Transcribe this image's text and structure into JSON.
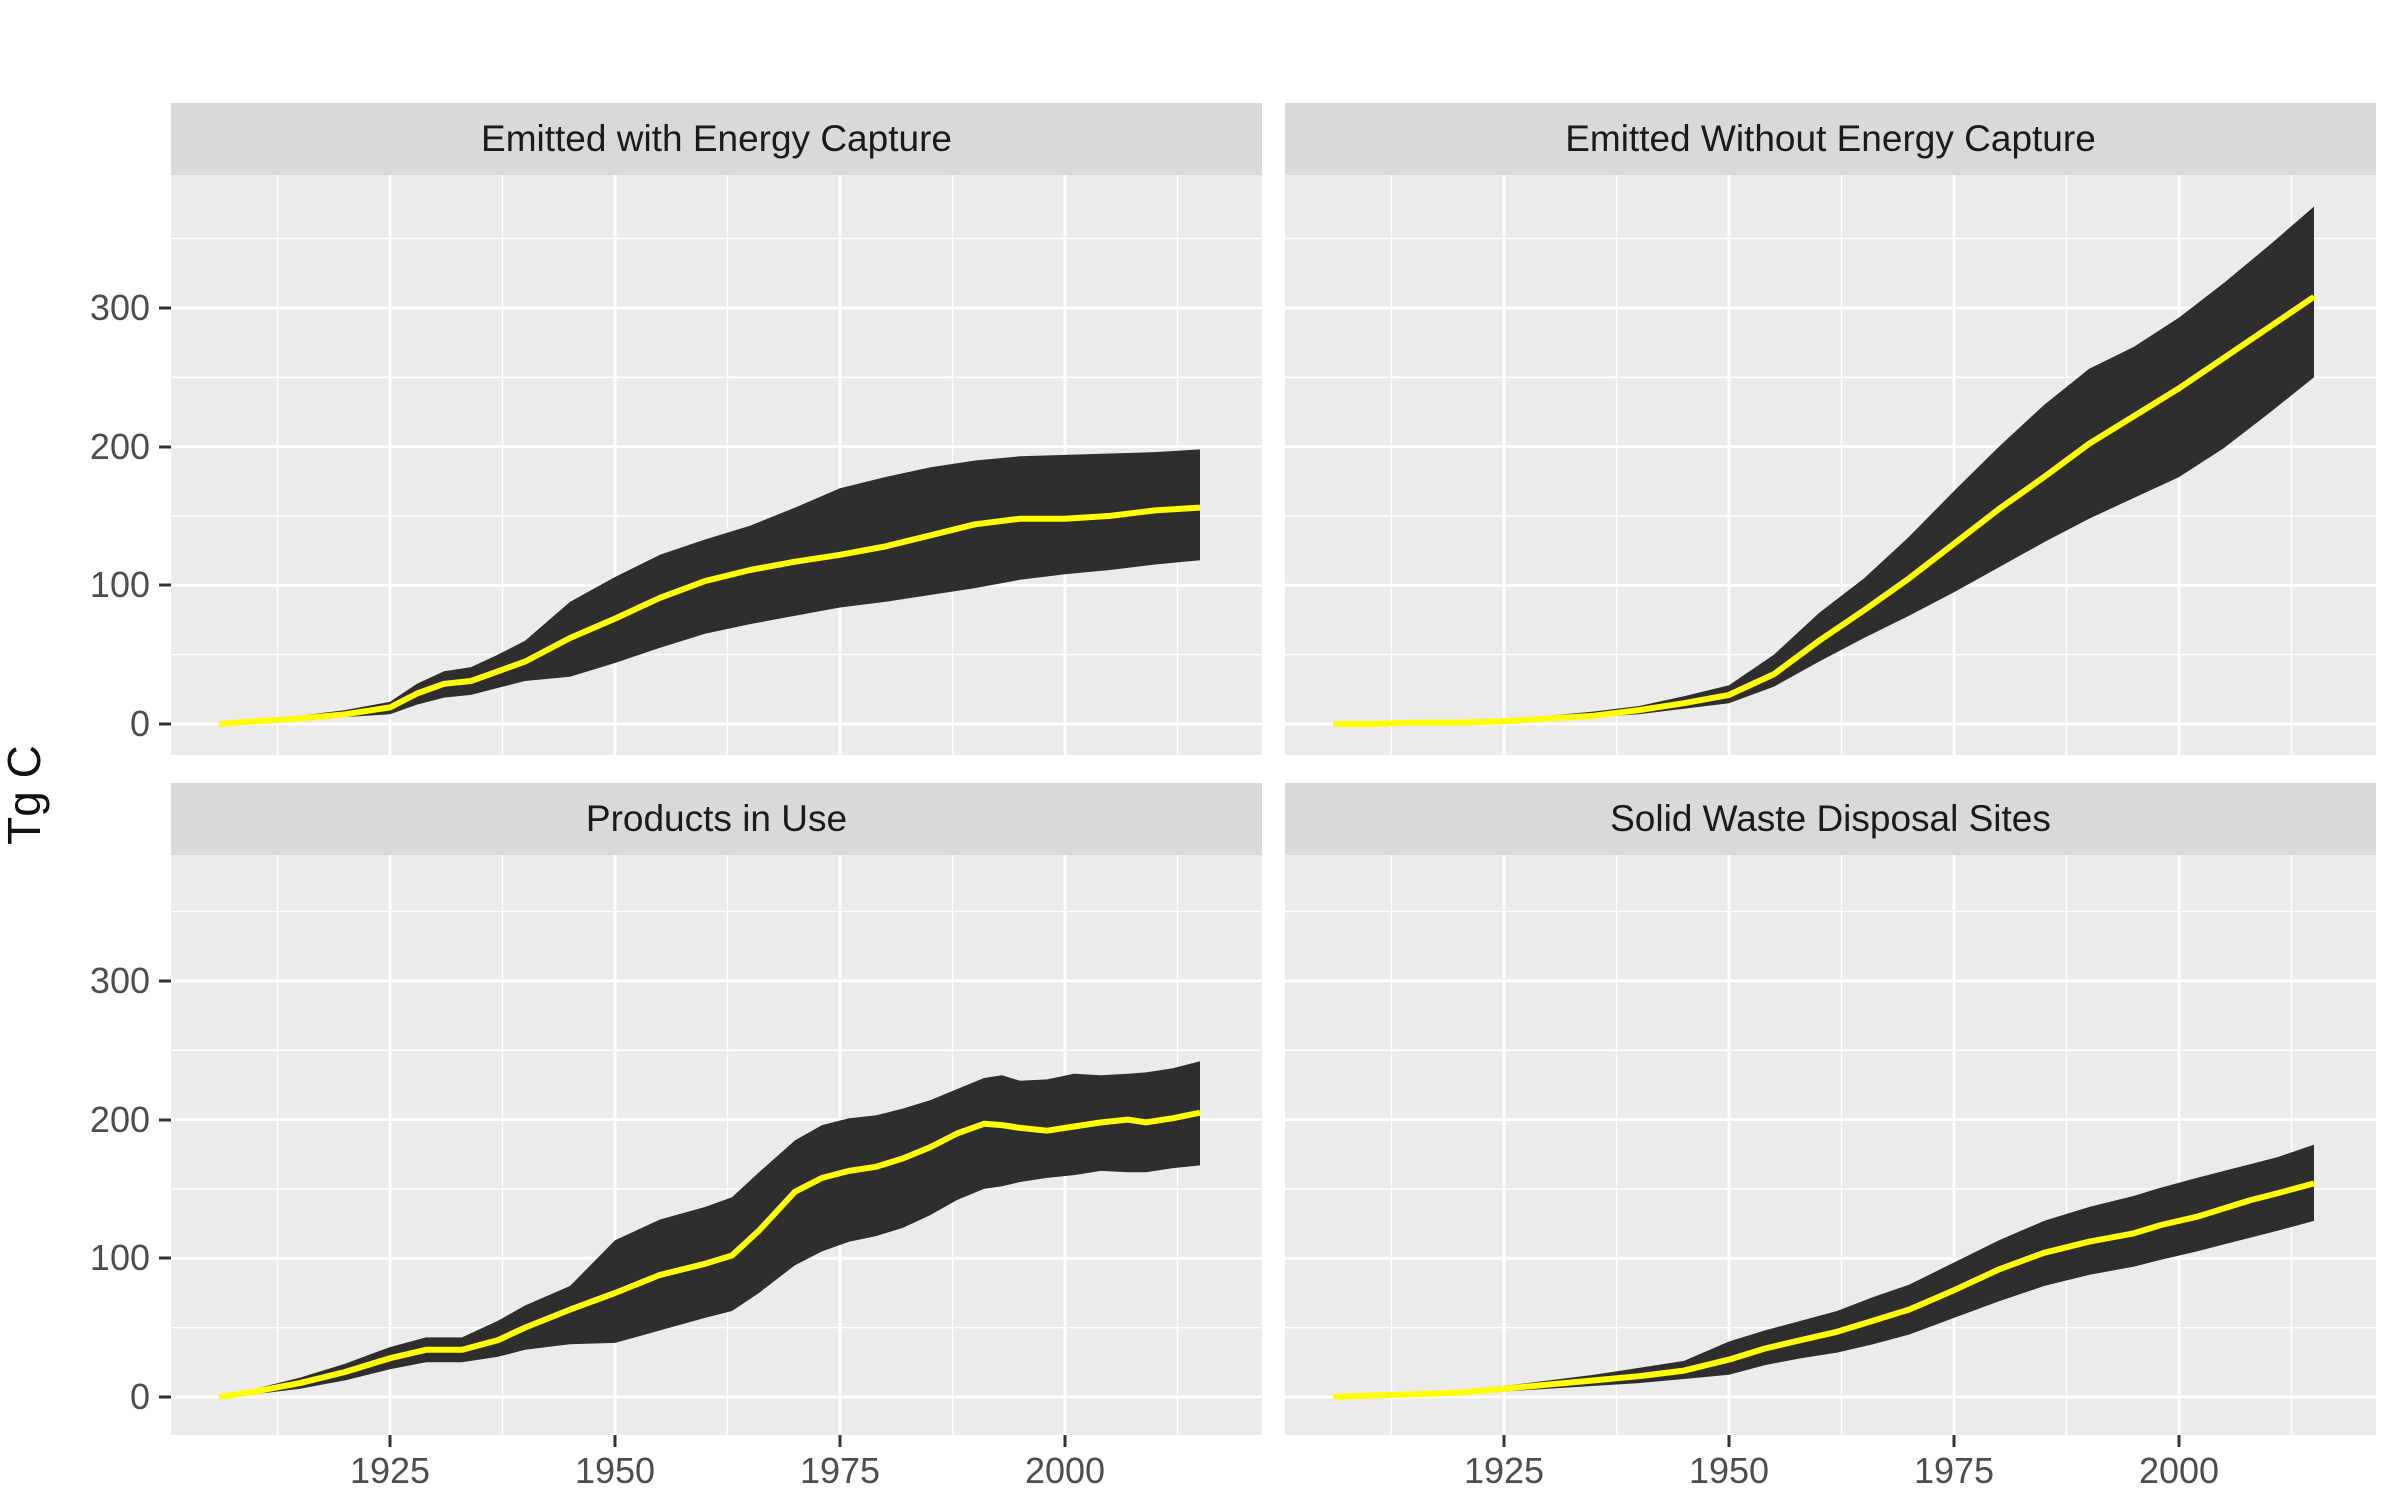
{
  "figure": {
    "y_axis_title": "Tg C"
  },
  "colors": {
    "background": "#ffffff",
    "panel_background": "#ebebeb",
    "strip_background": "#d9d9d9",
    "strip_text": "#1a1a1a",
    "grid_line": "#ffffff",
    "axis_text": "#4d4d4d",
    "tick_mark": "#333333",
    "ribbon_fill": "#2e2e2e",
    "line_color": "#ffff00"
  },
  "axes": {
    "y_labels": [
      "300",
      "200",
      "100",
      "0"
    ],
    "x_labels": [
      "1925",
      "1950",
      "1975",
      "2000"
    ]
  },
  "chart_data": [
    {
      "type": "area",
      "title": "Emitted with Energy Capture",
      "ylabel": "Tg C",
      "xlabel": "",
      "x_ticks": [
        1925,
        1950,
        1975,
        2000
      ],
      "y_ticks": [
        0,
        100,
        200,
        300
      ],
      "xlim": [
        1900.5,
        2021.5
      ],
      "ylim": [
        -22,
        396
      ],
      "grid": "on",
      "legend": "none",
      "series": {
        "years": [
          1906,
          1910,
          1915,
          1920,
          1925,
          1928,
          1931,
          1934,
          1937,
          1940,
          1945,
          1950,
          1955,
          1960,
          1965,
          1970,
          1975,
          1980,
          1985,
          1990,
          1995,
          2000,
          2005,
          2010,
          2015
        ],
        "median": [
          0,
          2,
          4,
          7,
          12,
          22,
          29,
          31,
          38,
          45,
          62,
          76,
          91,
          103,
          111,
          117,
          122,
          128,
          136,
          144,
          148,
          148,
          150,
          154,
          156
        ],
        "lower": [
          0,
          1,
          3,
          5,
          7,
          14,
          19,
          21,
          26,
          31,
          34,
          44,
          55,
          65,
          72,
          78,
          84,
          88,
          93,
          98,
          104,
          108,
          111,
          115,
          118
        ],
        "upper": [
          0,
          3,
          6,
          10,
          16,
          29,
          38,
          41,
          50,
          60,
          88,
          106,
          122,
          133,
          143,
          156,
          170,
          178,
          185,
          190,
          193,
          194,
          195,
          196,
          198
        ]
      }
    },
    {
      "type": "area",
      "title": "Emitted Without Energy Capture",
      "ylabel": "Tg C",
      "xlabel": "",
      "x_ticks": [
        1925,
        1950,
        1975,
        2000
      ],
      "y_ticks": [
        0,
        100,
        200,
        300
      ],
      "xlim": [
        1900.5,
        2021.5
      ],
      "ylim": [
        -22,
        396
      ],
      "grid": "on",
      "legend": "none",
      "series": {
        "years": [
          1906,
          1910,
          1915,
          1920,
          1925,
          1930,
          1935,
          1940,
          1945,
          1950,
          1955,
          1960,
          1965,
          1970,
          1975,
          1980,
          1985,
          1990,
          1995,
          2000,
          2005,
          2010,
          2015
        ],
        "median": [
          0,
          0,
          1,
          1,
          2,
          4,
          6,
          10,
          15,
          21,
          36,
          60,
          82,
          105,
          130,
          155,
          178,
          202,
          222,
          242,
          264,
          286,
          308
        ],
        "lower": [
          0,
          0,
          0,
          1,
          1,
          3,
          5,
          7,
          11,
          15,
          27,
          45,
          62,
          78,
          95,
          113,
          131,
          148,
          163,
          178,
          199,
          224,
          250
        ],
        "upper": [
          0,
          0,
          1,
          2,
          3,
          6,
          9,
          13,
          20,
          28,
          50,
          80,
          105,
          135,
          168,
          200,
          230,
          256,
          272,
          293,
          318,
          345,
          373
        ]
      }
    },
    {
      "type": "area",
      "title": "Products in Use",
      "ylabel": "Tg C",
      "xlabel": "",
      "x_ticks": [
        1925,
        1950,
        1975,
        2000
      ],
      "y_ticks": [
        0,
        100,
        200,
        300
      ],
      "xlim": [
        1900.5,
        2021.5
      ],
      "ylim": [
        -22,
        396
      ],
      "grid": "on",
      "legend": "none",
      "series": {
        "years": [
          1906,
          1910,
          1915,
          1920,
          1925,
          1929,
          1933,
          1937,
          1940,
          1945,
          1950,
          1955,
          1960,
          1963,
          1966,
          1970,
          1973,
          1976,
          1979,
          1982,
          1985,
          1988,
          1991,
          1993,
          1995,
          1998,
          2001,
          2004,
          2007,
          2009,
          2012,
          2015
        ],
        "median": [
          0,
          4,
          10,
          18,
          28,
          34,
          34,
          41,
          50,
          63,
          75,
          88,
          96,
          102,
          120,
          148,
          158,
          163,
          166,
          172,
          180,
          190,
          197,
          196,
          194,
          192,
          195,
          198,
          200,
          198,
          201,
          205
        ],
        "lower": [
          0,
          2,
          6,
          12,
          20,
          25,
          25,
          29,
          34,
          38,
          39,
          48,
          57,
          62,
          75,
          95,
          105,
          112,
          116,
          122,
          131,
          142,
          150,
          152,
          155,
          158,
          160,
          163,
          162,
          162,
          165,
          167
        ],
        "upper": [
          0,
          6,
          14,
          24,
          36,
          43,
          43,
          55,
          66,
          80,
          113,
          128,
          137,
          144,
          162,
          185,
          196,
          201,
          203,
          208,
          214,
          222,
          230,
          232,
          228,
          229,
          233,
          232,
          233,
          234,
          237,
          242
        ]
      }
    },
    {
      "type": "area",
      "title": "Solid Waste Disposal Sites",
      "ylabel": "Tg C",
      "xlabel": "",
      "x_ticks": [
        1925,
        1950,
        1975,
        2000
      ],
      "y_ticks": [
        0,
        100,
        200,
        300
      ],
      "xlim": [
        1900.5,
        2021.5
      ],
      "ylim": [
        -22,
        396
      ],
      "grid": "on",
      "legend": "none",
      "series": {
        "years": [
          1906,
          1910,
          1915,
          1920,
          1925,
          1930,
          1935,
          1940,
          1945,
          1950,
          1954,
          1958,
          1962,
          1966,
          1970,
          1975,
          1980,
          1985,
          1990,
          1995,
          1998,
          2002,
          2005,
          2008,
          2011,
          2015
        ],
        "median": [
          0,
          1,
          2,
          3,
          6,
          9,
          12,
          15,
          19,
          27,
          35,
          41,
          47,
          55,
          63,
          77,
          92,
          104,
          112,
          118,
          124,
          130,
          136,
          142,
          147,
          154
        ],
        "lower": [
          0,
          0,
          1,
          2,
          4,
          6,
          8,
          10,
          13,
          16,
          23,
          28,
          32,
          38,
          45,
          57,
          69,
          80,
          88,
          94,
          99,
          105,
          110,
          115,
          120,
          127
        ],
        "upper": [
          0,
          1,
          2,
          5,
          8,
          12,
          16,
          21,
          26,
          40,
          48,
          55,
          62,
          72,
          81,
          97,
          113,
          127,
          137,
          145,
          151,
          158,
          163,
          168,
          173,
          182
        ]
      }
    }
  ]
}
